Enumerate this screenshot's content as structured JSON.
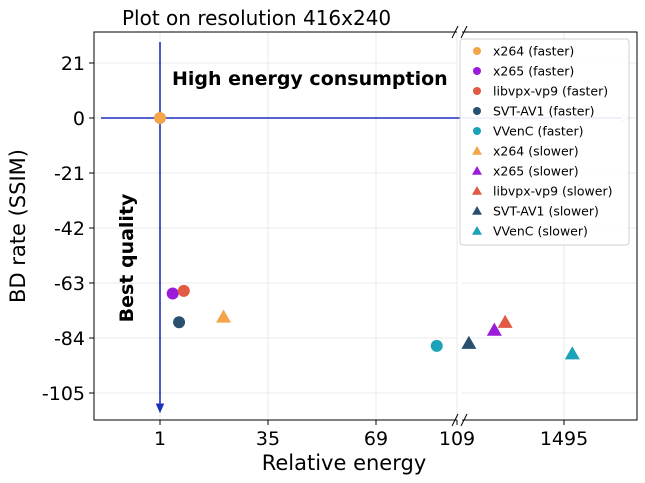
{
  "chart_data": {
    "type": "scatter",
    "title": "Plot on resolution 416x240",
    "xlabel": "Relative energy",
    "ylabel": "BD rate (SSIM)",
    "x_ticks": [
      "1",
      "35",
      "69",
      "109",
      "1495"
    ],
    "x_tick_values": [
      1,
      35,
      69,
      109,
      1495
    ],
    "x_scale": "broken: linear 1–109 (left segment), then compressed segment 109–1495+",
    "y_ticks": [
      "21",
      "0",
      "-21",
      "-42",
      "-63",
      "-84",
      "-105"
    ],
    "y_tick_values": [
      21,
      0,
      -21,
      -42,
      -63,
      -84,
      -105
    ],
    "ylim": [
      -114,
      32
    ],
    "grid": true,
    "legend_position": "top-right",
    "annotations": {
      "top": "High energy consumption",
      "left": "Best quality"
    },
    "reference_point": {
      "x": 1,
      "y": 0
    },
    "series": [
      {
        "name": "x264 (faster)",
        "marker": "circle",
        "color": "#f2a54a",
        "points": [
          {
            "x": 1,
            "y": 0
          }
        ]
      },
      {
        "name": "x265 (faster)",
        "marker": "circle",
        "color": "#9c1ad9",
        "points": [
          {
            "x": 5,
            "y": -67
          }
        ]
      },
      {
        "name": "libvpx-vp9 (faster)",
        "marker": "circle",
        "color": "#e05a44",
        "points": [
          {
            "x": 8.5,
            "y": -66
          }
        ]
      },
      {
        "name": "SVT-AV1 (faster)",
        "marker": "circle",
        "color": "#2a5070",
        "points": [
          {
            "x": 7,
            "y": -78
          }
        ]
      },
      {
        "name": "VVenC (faster)",
        "marker": "circle",
        "color": "#1aa3b8",
        "points": [
          {
            "x": 99,
            "y": -87
          }
        ]
      },
      {
        "name": "x264 (slower)",
        "marker": "triangle",
        "color": "#f2a54a",
        "points": [
          {
            "x": 21,
            "y": -76
          }
        ]
      },
      {
        "name": "x265 (slower)",
        "marker": "triangle",
        "color": "#9c1ad9",
        "points": [
          {
            "x": 250,
            "y": -81
          }
        ]
      },
      {
        "name": "libvpx-vp9 (slower)",
        "marker": "triangle",
        "color": "#e05a44",
        "points": [
          {
            "x": 330,
            "y": -78
          }
        ]
      },
      {
        "name": "SVT-AV1 (slower)",
        "marker": "triangle",
        "color": "#2a5070",
        "points": [
          {
            "x": 130,
            "y": -86
          }
        ]
      },
      {
        "name": "VVenC (slower)",
        "marker": "triangle",
        "color": "#1aa3b8",
        "points": [
          {
            "x": 1850,
            "y": -90
          }
        ]
      }
    ]
  }
}
